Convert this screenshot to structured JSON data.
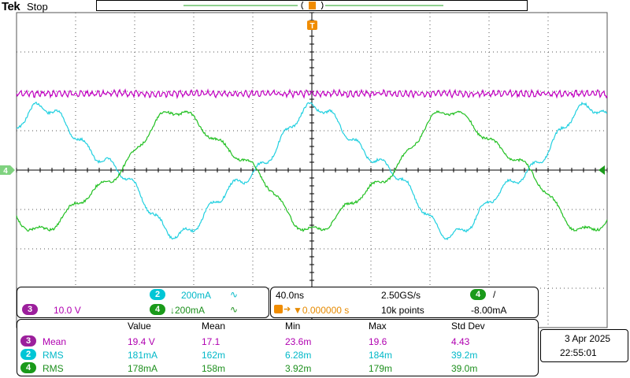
{
  "header": {
    "brand": "Tek",
    "status": "Stop"
  },
  "trigger_marker": "T",
  "ch4_ground_marker": "4",
  "colors": {
    "ch3": "#c000c0",
    "ch2": "#22d0e0",
    "ch4": "#22c022",
    "trigger": "#f08c00",
    "grid": "#555555"
  },
  "channels": {
    "ch3": {
      "num": "3",
      "scale": "10.0 V"
    },
    "ch2": {
      "num": "2",
      "scale": "200mA",
      "coupling": "∿"
    },
    "ch4": {
      "num": "4",
      "scale": "↓200mA",
      "coupling": "∿"
    }
  },
  "timebase": {
    "scale": "40.0ns",
    "sample_rate": "2.50GS/s",
    "trig_position": "▼0.000000 s",
    "record_length": "10k points",
    "trigger_channel": "4",
    "trigger_slope": "/",
    "trigger_level": "-8.00mA"
  },
  "measurements": {
    "headers": [
      "Value",
      "Mean",
      "Min",
      "Max",
      "Std Dev"
    ],
    "rows": [
      {
        "ch": "3",
        "type": "Mean",
        "value": "19.4 V",
        "mean": "17.1",
        "min": "23.6m",
        "max": "19.6",
        "std": "4.43"
      },
      {
        "ch": "2",
        "type": "RMS",
        "value": "181mA",
        "mean": "162m",
        "min": "6.28m",
        "max": "184m",
        "std": "39.2m"
      },
      {
        "ch": "4",
        "type": "RMS",
        "value": "178mA",
        "mean": "158m",
        "min": "3.92m",
        "max": "179m",
        "std": "39.0m"
      }
    ]
  },
  "clock": {
    "date": "3 Apr 2025",
    "time": "22:55:01"
  }
}
